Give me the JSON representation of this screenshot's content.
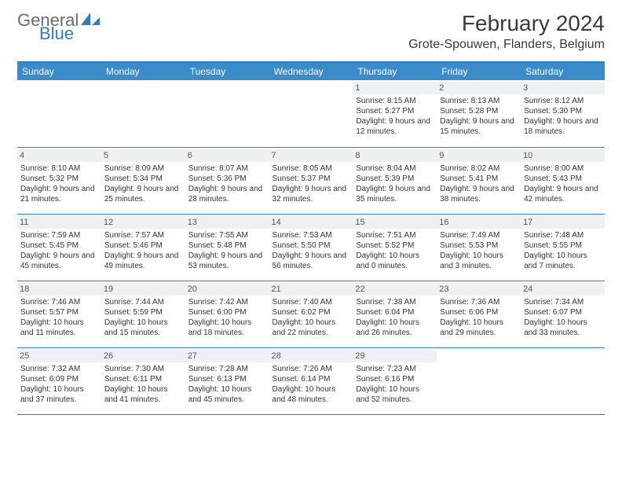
{
  "logo": {
    "part1": "General",
    "part2": "Blue",
    "shape_color": "#2d7fbf",
    "text1_color": "#6b6b6b",
    "text2_color": "#2d7fbf"
  },
  "title": {
    "month": "February 2024",
    "location": "Grote-Spouwen, Flanders, Belgium"
  },
  "colors": {
    "header_bg": "#3a8bc9",
    "rule": "#2d7fbf",
    "daynum_bg": "#eef1f3"
  },
  "weekdays": [
    "Sunday",
    "Monday",
    "Tuesday",
    "Wednesday",
    "Thursday",
    "Friday",
    "Saturday"
  ],
  "weeks": [
    [
      {
        "n": "",
        "sr": "",
        "ss": "",
        "dl": ""
      },
      {
        "n": "",
        "sr": "",
        "ss": "",
        "dl": ""
      },
      {
        "n": "",
        "sr": "",
        "ss": "",
        "dl": ""
      },
      {
        "n": "",
        "sr": "",
        "ss": "",
        "dl": ""
      },
      {
        "n": "1",
        "sr": "Sunrise: 8:15 AM",
        "ss": "Sunset: 5:27 PM",
        "dl": "Daylight: 9 hours and 12 minutes."
      },
      {
        "n": "2",
        "sr": "Sunrise: 8:13 AM",
        "ss": "Sunset: 5:28 PM",
        "dl": "Daylight: 9 hours and 15 minutes."
      },
      {
        "n": "3",
        "sr": "Sunrise: 8:12 AM",
        "ss": "Sunset: 5:30 PM",
        "dl": "Daylight: 9 hours and 18 minutes."
      }
    ],
    [
      {
        "n": "4",
        "sr": "Sunrise: 8:10 AM",
        "ss": "Sunset: 5:32 PM",
        "dl": "Daylight: 9 hours and 21 minutes."
      },
      {
        "n": "5",
        "sr": "Sunrise: 8:09 AM",
        "ss": "Sunset: 5:34 PM",
        "dl": "Daylight: 9 hours and 25 minutes."
      },
      {
        "n": "6",
        "sr": "Sunrise: 8:07 AM",
        "ss": "Sunset: 5:36 PM",
        "dl": "Daylight: 9 hours and 28 minutes."
      },
      {
        "n": "7",
        "sr": "Sunrise: 8:05 AM",
        "ss": "Sunset: 5:37 PM",
        "dl": "Daylight: 9 hours and 32 minutes."
      },
      {
        "n": "8",
        "sr": "Sunrise: 8:04 AM",
        "ss": "Sunset: 5:39 PM",
        "dl": "Daylight: 9 hours and 35 minutes."
      },
      {
        "n": "9",
        "sr": "Sunrise: 8:02 AM",
        "ss": "Sunset: 5:41 PM",
        "dl": "Daylight: 9 hours and 38 minutes."
      },
      {
        "n": "10",
        "sr": "Sunrise: 8:00 AM",
        "ss": "Sunset: 5:43 PM",
        "dl": "Daylight: 9 hours and 42 minutes."
      }
    ],
    [
      {
        "n": "11",
        "sr": "Sunrise: 7:59 AM",
        "ss": "Sunset: 5:45 PM",
        "dl": "Daylight: 9 hours and 45 minutes."
      },
      {
        "n": "12",
        "sr": "Sunrise: 7:57 AM",
        "ss": "Sunset: 5:46 PM",
        "dl": "Daylight: 9 hours and 49 minutes."
      },
      {
        "n": "13",
        "sr": "Sunrise: 7:55 AM",
        "ss": "Sunset: 5:48 PM",
        "dl": "Daylight: 9 hours and 53 minutes."
      },
      {
        "n": "14",
        "sr": "Sunrise: 7:53 AM",
        "ss": "Sunset: 5:50 PM",
        "dl": "Daylight: 9 hours and 56 minutes."
      },
      {
        "n": "15",
        "sr": "Sunrise: 7:51 AM",
        "ss": "Sunset: 5:52 PM",
        "dl": "Daylight: 10 hours and 0 minutes."
      },
      {
        "n": "16",
        "sr": "Sunrise: 7:49 AM",
        "ss": "Sunset: 5:53 PM",
        "dl": "Daylight: 10 hours and 3 minutes."
      },
      {
        "n": "17",
        "sr": "Sunrise: 7:48 AM",
        "ss": "Sunset: 5:55 PM",
        "dl": "Daylight: 10 hours and 7 minutes."
      }
    ],
    [
      {
        "n": "18",
        "sr": "Sunrise: 7:46 AM",
        "ss": "Sunset: 5:57 PM",
        "dl": "Daylight: 10 hours and 11 minutes."
      },
      {
        "n": "19",
        "sr": "Sunrise: 7:44 AM",
        "ss": "Sunset: 5:59 PM",
        "dl": "Daylight: 10 hours and 15 minutes."
      },
      {
        "n": "20",
        "sr": "Sunrise: 7:42 AM",
        "ss": "Sunset: 6:00 PM",
        "dl": "Daylight: 10 hours and 18 minutes."
      },
      {
        "n": "21",
        "sr": "Sunrise: 7:40 AM",
        "ss": "Sunset: 6:02 PM",
        "dl": "Daylight: 10 hours and 22 minutes."
      },
      {
        "n": "22",
        "sr": "Sunrise: 7:38 AM",
        "ss": "Sunset: 6:04 PM",
        "dl": "Daylight: 10 hours and 26 minutes."
      },
      {
        "n": "23",
        "sr": "Sunrise: 7:36 AM",
        "ss": "Sunset: 6:06 PM",
        "dl": "Daylight: 10 hours and 29 minutes."
      },
      {
        "n": "24",
        "sr": "Sunrise: 7:34 AM",
        "ss": "Sunset: 6:07 PM",
        "dl": "Daylight: 10 hours and 33 minutes."
      }
    ],
    [
      {
        "n": "25",
        "sr": "Sunrise: 7:32 AM",
        "ss": "Sunset: 6:09 PM",
        "dl": "Daylight: 10 hours and 37 minutes."
      },
      {
        "n": "26",
        "sr": "Sunrise: 7:30 AM",
        "ss": "Sunset: 6:11 PM",
        "dl": "Daylight: 10 hours and 41 minutes."
      },
      {
        "n": "27",
        "sr": "Sunrise: 7:28 AM",
        "ss": "Sunset: 6:13 PM",
        "dl": "Daylight: 10 hours and 45 minutes."
      },
      {
        "n": "28",
        "sr": "Sunrise: 7:26 AM",
        "ss": "Sunset: 6:14 PM",
        "dl": "Daylight: 10 hours and 48 minutes."
      },
      {
        "n": "29",
        "sr": "Sunrise: 7:23 AM",
        "ss": "Sunset: 6:16 PM",
        "dl": "Daylight: 10 hours and 52 minutes."
      },
      {
        "n": "",
        "sr": "",
        "ss": "",
        "dl": ""
      },
      {
        "n": "",
        "sr": "",
        "ss": "",
        "dl": ""
      }
    ]
  ]
}
